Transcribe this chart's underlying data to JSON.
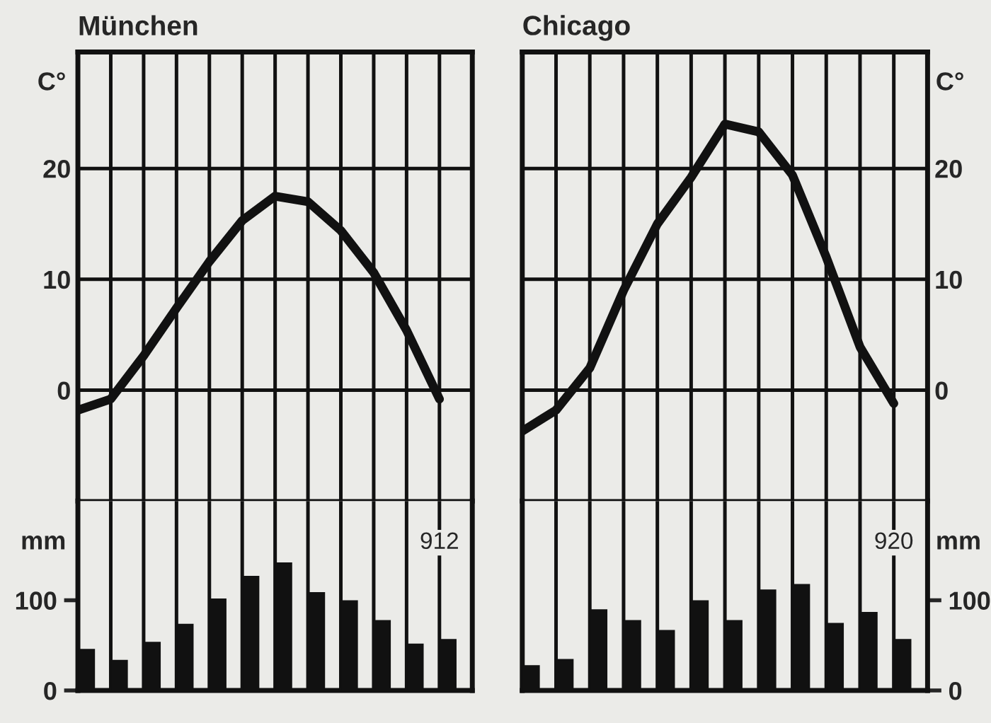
{
  "chart_data": [
    {
      "type": "line",
      "title": "München",
      "ylabel": "C°",
      "categories": [
        null,
        null,
        null,
        null,
        null,
        null,
        null,
        null,
        null,
        null,
        null,
        null
      ],
      "series": [
        {
          "color": "#111111",
          "values": [
            -1.8,
            -0.8,
            3.1,
            7.4,
            11.6,
            15.3,
            17.5,
            17.0,
            14.4,
            10.6,
            5.4,
            -0.8
          ]
        }
      ],
      "ylim": [
        -10,
        30.5
      ],
      "yticks": [
        0,
        10,
        20
      ],
      "grid": true,
      "tick_labels": "y"
    },
    {
      "type": "bar",
      "ylabel": "mm",
      "annotations": [
        "912"
      ],
      "categories": [
        null,
        null,
        null,
        null,
        null,
        null,
        null,
        null,
        null,
        null,
        null,
        null
      ],
      "series": [
        {
          "color": "#111111",
          "values": [
            46,
            34,
            54,
            74,
            102,
            127,
            142,
            109,
            100,
            78,
            52,
            57
          ]
        }
      ],
      "ylim": [
        0,
        210
      ],
      "yticks": [
        0,
        100
      ],
      "grid": "x",
      "tick_labels": "y"
    },
    {
      "type": "line",
      "title": "Chicago",
      "ylabel": "C°",
      "categories": [
        null,
        null,
        null,
        null,
        null,
        null,
        null,
        null,
        null,
        null,
        null,
        null
      ],
      "series": [
        {
          "color": "#111111",
          "values": [
            -3.7,
            -1.8,
            2.0,
            9.0,
            15.0,
            19.2,
            24.0,
            23.3,
            19.4,
            12.0,
            3.9,
            -1.2
          ]
        }
      ],
      "ylim": [
        -10,
        30.5
      ],
      "yticks": [
        0,
        10,
        20
      ],
      "grid": true,
      "tick_labels": "y"
    },
    {
      "type": "bar",
      "ylabel": "mm",
      "annotations": [
        "920"
      ],
      "categories": [
        null,
        null,
        null,
        null,
        null,
        null,
        null,
        null,
        null,
        null,
        null,
        null
      ],
      "series": [
        {
          "color": "#111111",
          "values": [
            28,
            35,
            90,
            78,
            67,
            100,
            78,
            112,
            118,
            75,
            87,
            57
          ]
        }
      ],
      "ylim": [
        0,
        210
      ],
      "yticks": [
        0,
        100
      ],
      "grid": "x",
      "tick_labels": "y"
    }
  ]
}
